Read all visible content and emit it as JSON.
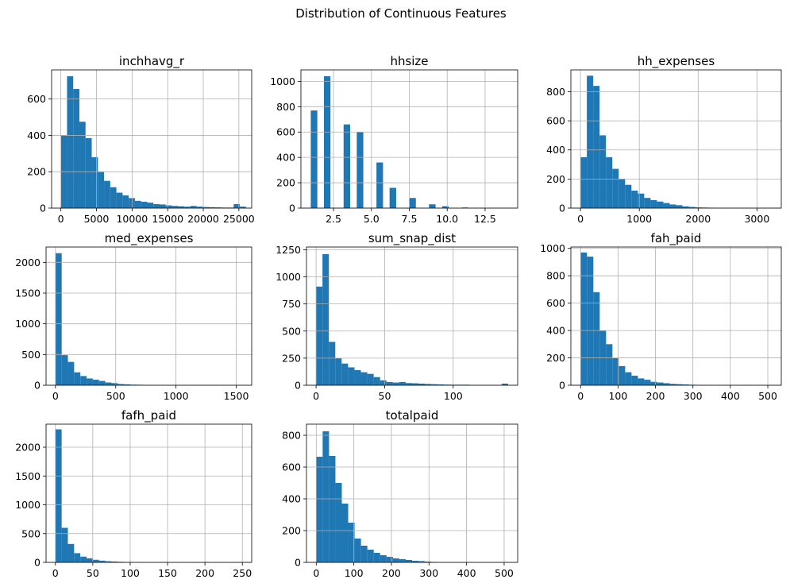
{
  "figure": {
    "suptitle": "Distribution of Continuous Features"
  },
  "chart_data": [
    {
      "type": "bar",
      "subtype": "histogram",
      "title": "inchhavg_r",
      "xlim": [
        -1300,
        26800
      ],
      "ylim": [
        0,
        760
      ],
      "xticks": [
        0,
        5000,
        10000,
        15000,
        20000,
        25000
      ],
      "yticks": [
        0,
        200,
        400,
        600
      ],
      "bin_edges_range": [
        0,
        26000
      ],
      "values": [
        400,
        725,
        655,
        475,
        385,
        280,
        200,
        150,
        115,
        85,
        70,
        55,
        40,
        35,
        30,
        22,
        20,
        15,
        12,
        10,
        8,
        12,
        8,
        6,
        5,
        4,
        3,
        3,
        22,
        8
      ],
      "grid": true,
      "color": "#1f77b4"
    },
    {
      "type": "bar",
      "subtype": "histogram",
      "title": "hhsize",
      "xlim": [
        0.35,
        14.65
      ],
      "ylim": [
        0,
        1090
      ],
      "xticks": [
        2.5,
        5.0,
        7.5,
        10.0,
        12.5
      ],
      "xtick_labels": [
        "2.5",
        "5.0",
        "7.5",
        "10.0",
        "12.5"
      ],
      "yticks": [
        0,
        200,
        400,
        600,
        800,
        1000
      ],
      "bin_edges_range": [
        1,
        14
      ],
      "values": [
        770,
        0,
        1040,
        0,
        0,
        660,
        0,
        600,
        0,
        0,
        360,
        0,
        160,
        0,
        0,
        80,
        0,
        0,
        30,
        0,
        15,
        0,
        0,
        5,
        0,
        0,
        0,
        0,
        0,
        0
      ],
      "grid": true,
      "color": "#1f77b4"
    },
    {
      "type": "bar",
      "subtype": "histogram",
      "title": "hh_expenses",
      "xlim": [
        -163,
        3413
      ],
      "ylim": [
        0,
        950
      ],
      "xticks": [
        0,
        1000,
        2000,
        3000
      ],
      "yticks": [
        0,
        200,
        400,
        600,
        800
      ],
      "bin_edges_range": [
        0,
        3250
      ],
      "values": [
        350,
        910,
        840,
        500,
        350,
        270,
        200,
        160,
        120,
        100,
        70,
        55,
        45,
        35,
        25,
        20,
        12,
        8,
        5,
        4,
        3,
        2,
        2,
        1,
        1,
        1,
        1,
        1,
        1,
        1
      ],
      "grid": true,
      "color": "#1f77b4"
    },
    {
      "type": "bar",
      "subtype": "histogram",
      "title": "med_expenses",
      "xlim": [
        -78,
        1628
      ],
      "ylim": [
        0,
        2250
      ],
      "xticks": [
        0,
        500,
        1000,
        1500
      ],
      "yticks": [
        0,
        500,
        1000,
        1500,
        2000
      ],
      "bin_edges_range": [
        0,
        1550
      ],
      "values": [
        2150,
        490,
        380,
        210,
        150,
        110,
        90,
        70,
        45,
        35,
        20,
        15,
        10,
        8,
        6,
        4,
        3,
        3,
        2,
        2,
        2,
        1,
        1,
        1,
        1,
        1,
        1,
        1,
        1,
        1
      ],
      "grid": true,
      "color": "#1f77b4"
    },
    {
      "type": "bar",
      "subtype": "histogram",
      "title": "sum_snap_dist",
      "xlim": [
        -7,
        147
      ],
      "ylim": [
        0,
        1275
      ],
      "xticks": [
        0,
        50,
        100
      ],
      "yticks": [
        0,
        250,
        500,
        750,
        1000,
        1250
      ],
      "bin_edges_range": [
        0,
        140
      ],
      "values": [
        910,
        1210,
        400,
        250,
        200,
        165,
        140,
        120,
        105,
        75,
        45,
        30,
        25,
        30,
        20,
        18,
        15,
        12,
        10,
        8,
        6,
        5,
        5,
        5,
        3,
        3,
        2,
        2,
        2,
        15
      ],
      "grid": true,
      "color": "#1f77b4"
    },
    {
      "type": "bar",
      "subtype": "histogram",
      "title": "fah_paid",
      "xlim": [
        -26,
        536
      ],
      "ylim": [
        0,
        1010
      ],
      "xticks": [
        0,
        100,
        200,
        300,
        400,
        500
      ],
      "yticks": [
        0,
        200,
        400,
        600,
        800,
        1000
      ],
      "bin_edges_range": [
        0,
        510
      ],
      "values": [
        970,
        940,
        680,
        400,
        300,
        200,
        140,
        95,
        70,
        50,
        40,
        25,
        20,
        15,
        10,
        8,
        6,
        4,
        3,
        2,
        2,
        1,
        1,
        1,
        1,
        1,
        1,
        1,
        1,
        1
      ],
      "grid": true,
      "color": "#1f77b4"
    },
    {
      "type": "bar",
      "subtype": "histogram",
      "title": "fafh_paid",
      "xlim": [
        -12.5,
        262.5
      ],
      "ylim": [
        0,
        2400
      ],
      "xticks": [
        0,
        50,
        100,
        150,
        200,
        250
      ],
      "yticks": [
        0,
        500,
        1000,
        1500,
        2000
      ],
      "bin_edges_range": [
        0,
        250
      ],
      "values": [
        2310,
        600,
        320,
        160,
        100,
        70,
        45,
        30,
        20,
        15,
        10,
        7,
        5,
        4,
        3,
        2,
        2,
        1,
        1,
        1,
        1,
        1,
        1,
        1,
        1,
        1,
        1,
        1,
        1,
        1
      ],
      "grid": true,
      "color": "#1f77b4"
    },
    {
      "type": "bar",
      "subtype": "histogram",
      "title": "totalpaid",
      "xlim": [
        -26,
        536
      ],
      "ylim": [
        0,
        870
      ],
      "xticks": [
        0,
        100,
        200,
        300,
        400,
        500
      ],
      "yticks": [
        0,
        200,
        400,
        600,
        800
      ],
      "bin_edges_range": [
        0,
        510
      ],
      "values": [
        665,
        825,
        670,
        500,
        370,
        250,
        150,
        105,
        80,
        60,
        45,
        35,
        25,
        20,
        15,
        10,
        8,
        5,
        3,
        2,
        2,
        1,
        1,
        1,
        1,
        1,
        1,
        1,
        1,
        1
      ],
      "grid": true,
      "color": "#1f77b4"
    }
  ]
}
